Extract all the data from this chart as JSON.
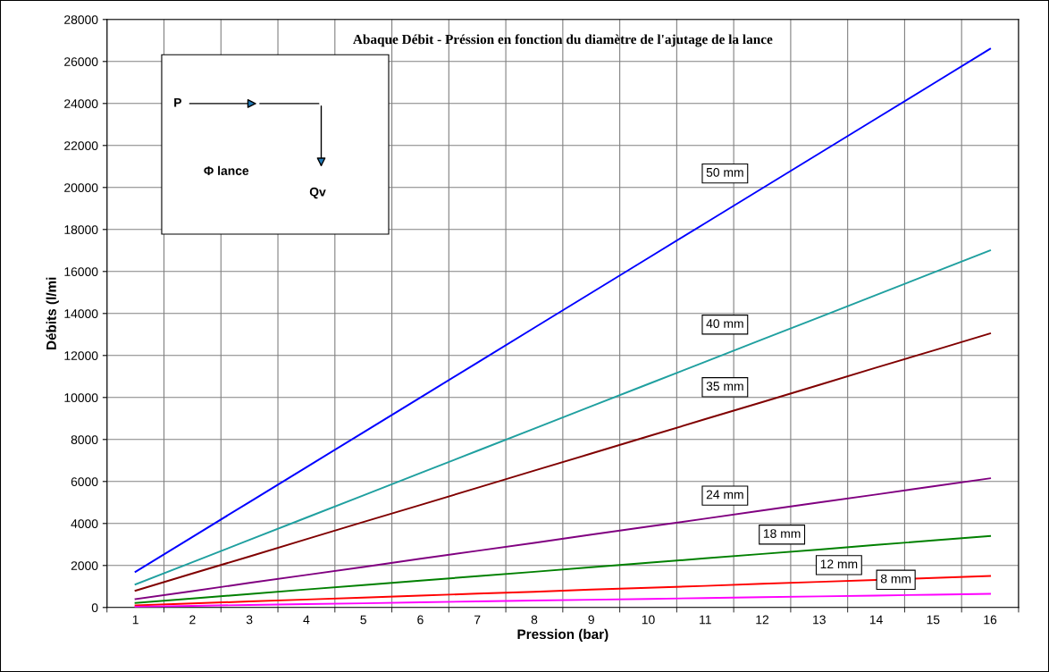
{
  "chart_data": {
    "type": "line",
    "title": "Abaque Débit - Préssion en fonction du diamètre de l'ajutage de la lance",
    "xlabel": "Pression (bar)",
    "ylabel": "Débits (l/mi",
    "categories": [
      "1",
      "2",
      "3",
      "4",
      "5",
      "6",
      "7",
      "8",
      "9",
      "10",
      "11",
      "12",
      "13",
      "14",
      "15",
      "16"
    ],
    "series": [
      {
        "color": "#0000ff",
        "values": [
          1700,
          3360,
          5020,
          6680,
          8340,
          10000,
          11660,
          13320,
          14980,
          16640,
          18300,
          19960,
          21620,
          23280,
          24940,
          26600
        ]
      },
      {
        "color": "#20a0a0",
        "values": [
          1100,
          2160,
          3220,
          4280,
          5340,
          6400,
          7460,
          8520,
          9580,
          10640,
          11700,
          12760,
          13820,
          14880,
          15940,
          17000
        ]
      },
      {
        "color": "#800000",
        "values": [
          800,
          1620,
          2430,
          3250,
          4070,
          4880,
          5700,
          6520,
          7330,
          8150,
          8970,
          9780,
          10600,
          11420,
          12230,
          13050
        ]
      },
      {
        "color": "#800080",
        "values": [
          400,
          780,
          1170,
          1550,
          1930,
          2320,
          2700,
          3080,
          3470,
          3850,
          4230,
          4620,
          5000,
          5380,
          5770,
          6150
        ]
      },
      {
        "color": "#008000",
        "values": [
          220,
          430,
          640,
          860,
          1070,
          1280,
          1490,
          1700,
          1920,
          2130,
          2340,
          2550,
          2760,
          2980,
          3190,
          3400
        ]
      },
      {
        "color": "#ff0000",
        "values": [
          100,
          190,
          290,
          380,
          470,
          570,
          660,
          750,
          850,
          940,
          1030,
          1130,
          1220,
          1310,
          1410,
          1500
        ]
      },
      {
        "color": "#ff00ff",
        "values": [
          40,
          80,
          120,
          160,
          200,
          250,
          290,
          330,
          370,
          410,
          450,
          490,
          530,
          570,
          610,
          650
        ]
      }
    ],
    "ylim": [
      0,
      28000
    ],
    "yticks": [
      0,
      2000,
      4000,
      6000,
      8000,
      10000,
      12000,
      14000,
      16000,
      18000,
      20000,
      22000,
      24000,
      26000,
      28000
    ],
    "grid": true,
    "marker": "none",
    "line_style": "solid",
    "annotations": [
      {
        "text": "50 mm",
        "x": "12",
        "y": 19960
      },
      {
        "text": "40 mm",
        "x": "12",
        "y": 12760
      },
      {
        "text": "35 mm",
        "x": "12",
        "y": 9780
      },
      {
        "text": "24 mm",
        "x": "12",
        "y": 4620
      },
      {
        "text": "18 mm",
        "x": "13",
        "y": 2760
      },
      {
        "text": "12 mm",
        "x": "14",
        "y": 1310
      },
      {
        "text": "8 mm",
        "x": "15",
        "y": 610
      },
      "P",
      "Φ lance",
      "Qv"
    ]
  }
}
